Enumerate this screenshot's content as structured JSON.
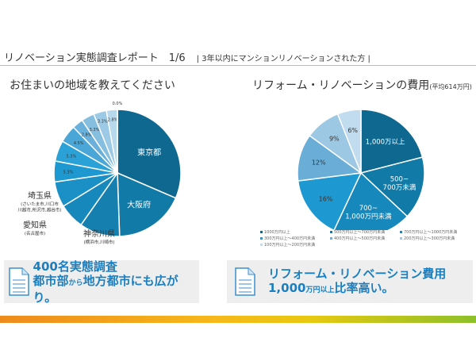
{
  "header": {
    "title": "リノベーション実態調査レポート　1/6",
    "subtitle": "| 3年以内にマンションリノベーションされた方 |"
  },
  "left": {
    "title": "お住まいの地域を教えてください"
  },
  "right": {
    "title": "リフォーム・リノベーションの費用",
    "title_note": "(平均614万円)"
  },
  "chart_data": [
    {
      "type": "pie",
      "title": "お住まいの地域を教えてください",
      "slices": [
        {
          "label": "東京都",
          "value": 31.5,
          "color": "#0e6890"
        },
        {
          "label": "大阪府",
          "value": 18,
          "color": "#127aa6"
        },
        {
          "label": "神奈川県",
          "sublabel": "(横浜市,川崎市)",
          "value": 10.3,
          "color": "#1580b0"
        },
        {
          "label": "埼玉県",
          "sublabel": "(さいたま市,川口市 川越市,所沢市,越谷市)",
          "value": 6.5,
          "color": "#1788bb"
        },
        {
          "label": "愛知県",
          "sublabel": "(名古屋市)",
          "value": 6.5,
          "color": "#1a90c6"
        },
        {
          "label": "5.3%",
          "value": 5.3,
          "color": "#1d98d0"
        },
        {
          "label": "5.3%",
          "value": 5.3,
          "color": "#2aa2d8"
        },
        {
          "label": "4.5%",
          "value": 4.5,
          "color": "#4aa6d6"
        },
        {
          "label": "2.8%",
          "value": 2.8,
          "color": "#6ab0da"
        },
        {
          "label": "3.3%",
          "value": 3.3,
          "color": "#86bedf"
        },
        {
          "label": "3.3%",
          "value": 3.3,
          "color": "#9ccae6"
        },
        {
          "label": "2.8%",
          "value": 2.8,
          "color": "#b8d8ec"
        },
        {
          "label": "0.0%",
          "value": 0,
          "color": "#d0e6f2"
        }
      ]
    },
    {
      "type": "pie",
      "title": "リフォーム・リノベーションの費用(平均614万円)",
      "slices": [
        {
          "label": "1,000万以上",
          "legend": "1000万円以上",
          "value": 21,
          "color": "#0e6890"
        },
        {
          "label": "500~\n700万未満",
          "legend": "500万円以上～700万円未満",
          "value": 16,
          "color": "#127aa6"
        },
        {
          "label": "700~\n1,000万円未満",
          "legend": "700万円以上～1000万円未満",
          "value": 20,
          "color": "#1788bb"
        },
        {
          "label": "16%",
          "legend": "300万円以上～400万円未満",
          "value": 16,
          "color": "#1d98d0"
        },
        {
          "label": "12%",
          "legend": "400万円以上～500万円未満",
          "value": 12,
          "color": "#6aaed8"
        },
        {
          "label": "9%",
          "legend": "200万円以上～300万円未満",
          "value": 9,
          "color": "#9cc8e4"
        },
        {
          "label": "6%",
          "legend": "100万円以上～200万円未満",
          "value": 6,
          "color": "#c0dcee"
        }
      ]
    }
  ],
  "boxes": [
    {
      "line1": "400名実態調査",
      "line2a": "都市部",
      "line2b": "から",
      "line2c": "地方都市にも広がり。"
    },
    {
      "line1": "リフォーム・リノベーション費用",
      "line2a": "1,000",
      "line2b": "万円以上",
      "line2c": "比率高い。"
    }
  ]
}
